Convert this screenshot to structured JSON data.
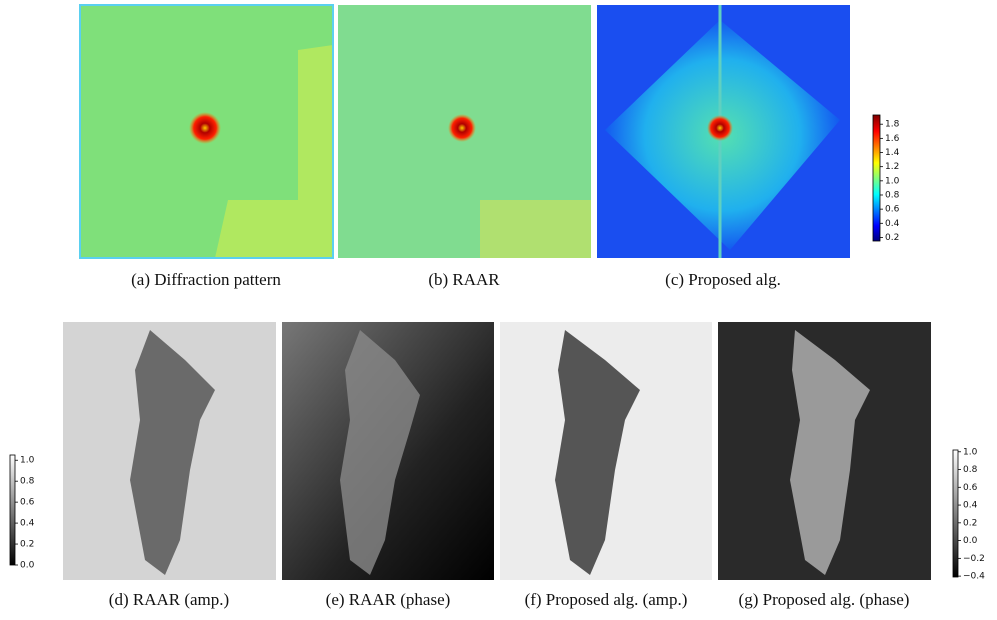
{
  "figure": {
    "panels": [
      {
        "caption": "(a)  Diffraction pattern"
      },
      {
        "caption": "(b)  RAAR"
      },
      {
        "caption": "(c)  Proposed alg."
      },
      {
        "caption": "(d)  RAAR (amp.)"
      },
      {
        "caption": "(e)  RAAR (phase)"
      },
      {
        "caption": "(f)  Proposed alg. (amp.)"
      },
      {
        "caption": "(g)  Proposed alg. (phase)"
      }
    ],
    "colorbars": [
      {
        "colormap": "jet",
        "lim": [
          0.15,
          1.93
        ],
        "ticks": [
          {
            "value": 0.2,
            "label": "0.2"
          },
          {
            "value": 0.4,
            "label": "0.4"
          },
          {
            "value": 0.6,
            "label": "0.6"
          },
          {
            "value": 0.8,
            "label": "0.8"
          },
          {
            "value": 1.0,
            "label": "1.0"
          },
          {
            "value": 1.2,
            "label": "1.2"
          },
          {
            "value": 1.4,
            "label": "1.4"
          },
          {
            "value": 1.6,
            "label": "1.6"
          },
          {
            "value": 1.8,
            "label": "1.8"
          }
        ]
      },
      {
        "colormap": "gray",
        "lim": [
          0,
          1.05
        ],
        "ticks": [
          {
            "value": 0,
            "label": "0.0"
          },
          {
            "value": 0.2,
            "label": "0.2"
          },
          {
            "value": 0.4,
            "label": "0.4"
          },
          {
            "value": 0.6,
            "label": "0.6"
          },
          {
            "value": 0.8,
            "label": "0.8"
          },
          {
            "value": 1.0,
            "label": "1.0"
          }
        ]
      },
      {
        "colormap": "gray",
        "lim": [
          -0.41,
          1.02
        ],
        "ticks": [
          {
            "value": -0.4,
            "label": "−0.4"
          },
          {
            "value": -0.2,
            "label": "−0.2"
          },
          {
            "value": 0,
            "label": "0.0"
          },
          {
            "value": 0.2,
            "label": "0.2"
          },
          {
            "value": 0.4,
            "label": "0.4"
          },
          {
            "value": 0.6,
            "label": "0.6"
          },
          {
            "value": 0.8,
            "label": "0.8"
          },
          {
            "value": 1.0,
            "label": "1.0"
          }
        ]
      }
    ]
  }
}
